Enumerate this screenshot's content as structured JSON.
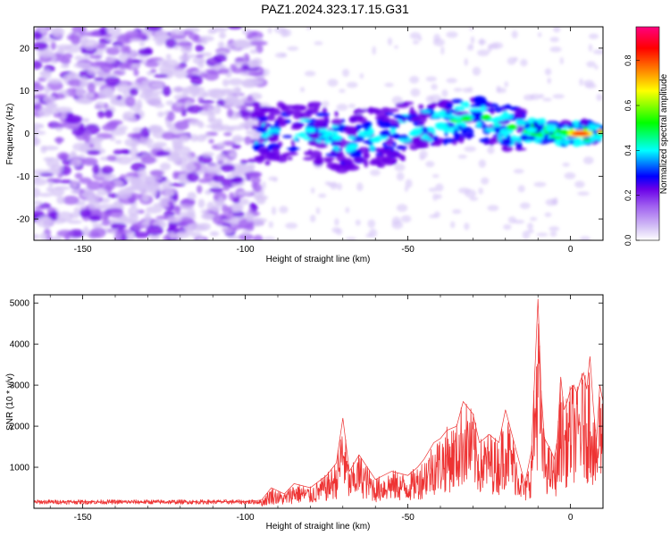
{
  "title": "PAZ1.2024.323.17.15.G31",
  "chart_data": [
    {
      "type": "heatmap",
      "xlabel": "Height of straight line (km)",
      "ylabel": "Frequency (Hz)",
      "xlim": [
        -165,
        10
      ],
      "ylim": [
        -25,
        25
      ],
      "xticks": [
        -150,
        -100,
        -50,
        0
      ],
      "yticks": [
        -20,
        -10,
        0,
        10,
        20
      ],
      "colorbar": {
        "label": "Normalized spectral amplitude",
        "range": [
          0.0,
          0.95
        ],
        "ticks": [
          "0.0",
          "0.2",
          "0.4",
          "0.6",
          "0.8"
        ],
        "colormap": [
          "#ffffff",
          "#d6c4f6",
          "#a060f0",
          "#6a00e8",
          "#0000ff",
          "#00ffff",
          "#00ff00",
          "#ffff00",
          "#ff7f00",
          "#ff0000",
          "#ff0080"
        ]
      },
      "ridge": [
        {
          "x": -95,
          "y": 0
        },
        {
          "x": -80,
          "y": 0.5
        },
        {
          "x": -70,
          "y": -2
        },
        {
          "x": -60,
          "y": -1
        },
        {
          "x": -50,
          "y": 1
        },
        {
          "x": -40,
          "y": 2.5
        },
        {
          "x": -30,
          "y": 4
        },
        {
          "x": -20,
          "y": 1.5
        },
        {
          "x": -10,
          "y": 0.5
        },
        {
          "x": 0,
          "y": 0
        },
        {
          "x": 10,
          "y": 0.5
        }
      ],
      "peak": {
        "x": 3,
        "y": 0,
        "value": 0.95
      }
    },
    {
      "type": "line",
      "xlabel": "Height of straight line (km)",
      "ylabel": "SNR (10 * v/v)",
      "xlim": [
        -165,
        10
      ],
      "ylim": [
        0,
        5200
      ],
      "xticks": [
        -150,
        -100,
        -50,
        0
      ],
      "yticks": [
        1000,
        2000,
        3000,
        4000,
        5000
      ],
      "series": [
        {
          "color": "#ee3333",
          "x": [
            -165,
            -150,
            -140,
            -130,
            -120,
            -110,
            -100,
            -95,
            -92,
            -88,
            -85,
            -80,
            -75,
            -72,
            -70,
            -68,
            -65,
            -60,
            -55,
            -50,
            -47,
            -45,
            -42,
            -40,
            -38,
            -35,
            -33,
            -30,
            -28,
            -25,
            -22,
            -20,
            -18,
            -16,
            -14,
            -12,
            -10,
            -9,
            -8,
            -6,
            -5,
            -4,
            -3,
            -2,
            -1,
            0,
            1,
            2,
            3,
            4,
            5,
            6,
            7,
            8,
            9,
            10
          ],
          "y": [
            150,
            160,
            150,
            155,
            150,
            160,
            165,
            200,
            500,
            350,
            600,
            500,
            800,
            1100,
            2200,
            900,
            1300,
            700,
            900,
            800,
            1000,
            1200,
            1600,
            1700,
            1900,
            2000,
            2600,
            2300,
            1600,
            1800,
            1600,
            2400,
            1800,
            1200,
            600,
            1400,
            5100,
            2800,
            1700,
            1400,
            1200,
            1700,
            3200,
            2400,
            2600,
            2900,
            3000,
            2800,
            3100,
            3300,
            2900,
            3700,
            2500,
            1600,
            3000,
            2600
          ]
        }
      ]
    }
  ]
}
